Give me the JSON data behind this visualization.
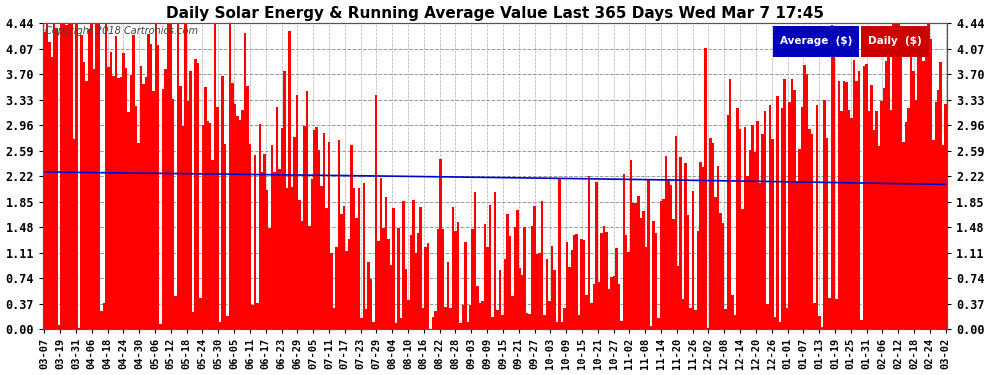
{
  "title": "Daily Solar Energy & Running Average Value Last 365 Days Wed Mar 7 17:45",
  "copyright": "Copyright 2018 Cartronics.com",
  "background_color": "#ffffff",
  "plot_bg_color": "#ffffff",
  "bar_color": "#ff0000",
  "avg_line_color": "#0000cc",
  "yticks": [
    0.0,
    0.37,
    0.74,
    1.11,
    1.48,
    1.85,
    2.22,
    2.59,
    2.96,
    3.33,
    3.7,
    4.07,
    4.44
  ],
  "ymax": 4.44,
  "ymin": 0.0,
  "legend_avg_color": "#0000bb",
  "legend_daily_color": "#cc0000",
  "n_bars": 365,
  "xtick_labels": [
    "03-07",
    "03-19",
    "03-31",
    "04-06",
    "04-18",
    "04-24",
    "04-30",
    "05-06",
    "05-12",
    "05-18",
    "05-24",
    "05-30",
    "06-05",
    "06-11",
    "06-17",
    "06-23",
    "06-29",
    "07-05",
    "07-11",
    "07-17",
    "07-23",
    "07-29",
    "08-04",
    "08-10",
    "08-16",
    "08-22",
    "08-28",
    "09-03",
    "09-09",
    "09-15",
    "09-21",
    "09-27",
    "10-03",
    "10-09",
    "10-15",
    "10-21",
    "10-27",
    "11-02",
    "11-08",
    "11-14",
    "11-20",
    "11-26",
    "12-02",
    "12-08",
    "12-14",
    "12-20",
    "12-26",
    "01-01",
    "01-07",
    "01-13",
    "01-19",
    "01-25",
    "01-31",
    "02-06",
    "02-12",
    "02-18",
    "02-24",
    "03-02"
  ]
}
